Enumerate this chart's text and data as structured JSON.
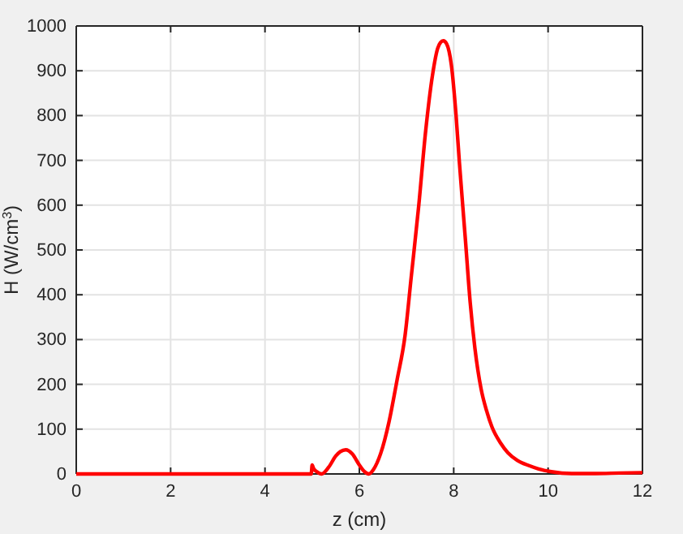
{
  "chart_data": {
    "type": "line",
    "xlabel": "z (cm)",
    "ylabel": "H (W/cm$^{3}$)",
    "xlim": [
      0,
      12
    ],
    "ylim": [
      0,
      1000
    ],
    "xticks": [
      0,
      2,
      4,
      6,
      8,
      10,
      12
    ],
    "yticks": [
      0,
      100,
      200,
      300,
      400,
      500,
      600,
      700,
      800,
      900,
      1000
    ],
    "grid": true,
    "marker": "none",
    "line_style": "solid",
    "series": [
      {
        "color": "#ff0000",
        "x": [
          0,
          1,
          2,
          3,
          4,
          4.5,
          4.98,
          5.0,
          5.03,
          5.1,
          5.2,
          5.35,
          5.5,
          5.6,
          5.71,
          5.85,
          6.0,
          6.1,
          6.2,
          6.3,
          6.45,
          6.63,
          6.8,
          6.97,
          7.1,
          7.26,
          7.4,
          7.55,
          7.66,
          7.72,
          7.78,
          7.85,
          7.95,
          8.05,
          8.12,
          8.25,
          8.35,
          8.45,
          8.58,
          8.7,
          8.81,
          9.0,
          9.15,
          9.35,
          9.61,
          9.8,
          10.07,
          10.5,
          11,
          11.5,
          12
        ],
        "values": [
          0,
          0,
          0,
          0,
          0,
          0,
          0,
          20,
          12,
          5,
          0,
          15,
          40,
          50,
          54,
          45,
          20,
          6,
          0,
          10,
          45,
          117,
          210,
          310,
          440,
          600,
          760,
          890,
          950,
          963,
          967,
          960,
          913,
          800,
          696,
          520,
          382,
          280,
          190,
          140,
          105,
          68,
          47,
          30,
          18,
          11,
          5,
          1,
          1,
          2,
          3
        ]
      }
    ]
  }
}
